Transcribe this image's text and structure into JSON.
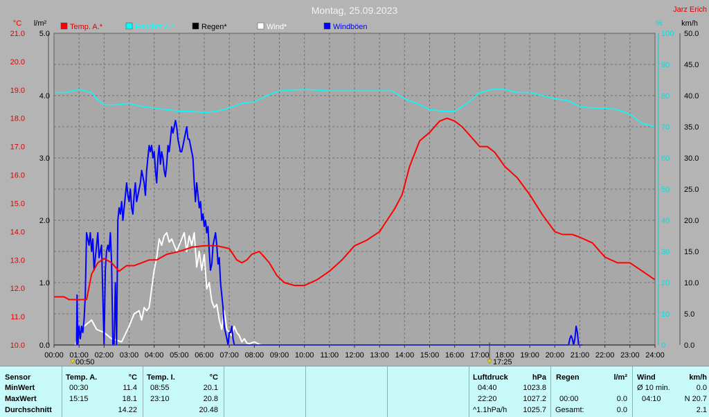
{
  "header": {
    "title": "Montag, 25.09.2023",
    "station": "Jarz Erich",
    "unit_c": "°C",
    "unit_lm2": "l/m²",
    "unit_pct": "%",
    "unit_kmh": "km/h"
  },
  "legend": [
    {
      "label": "Temp. A.*",
      "color": "#ff0000"
    },
    {
      "label": "Feuchte A.*",
      "color": "#00ffff"
    },
    {
      "label": "Regen*",
      "color": "#000000"
    },
    {
      "label": "Wind*",
      "color": "#ffffff"
    },
    {
      "label": "Windböen",
      "color": "#0000ff"
    }
  ],
  "markers": {
    "m1": "00:50",
    "m2": "17:25"
  },
  "chart_data": {
    "type": "line",
    "title": "Montag, 25.09.2023",
    "x_ticks": [
      "00:00",
      "01:00",
      "02:00",
      "03:00",
      "04:00",
      "05:00",
      "06:00",
      "07:00",
      "08:00",
      "09:00",
      "10:00",
      "11:00",
      "12:00",
      "13:00",
      "14:00",
      "15:00",
      "16:00",
      "17:00",
      "18:00",
      "19:00",
      "20:00",
      "21:00",
      "22:00",
      "23:00",
      "24:00"
    ],
    "y_temp": {
      "label": "°C",
      "range": [
        10,
        21
      ],
      "ticks": [
        "21.0",
        "20.0",
        "19.0",
        "18.0",
        "17.0",
        "16.0",
        "15.0",
        "14.0",
        "13.0",
        "12.0",
        "11.0",
        "10.0"
      ]
    },
    "y_rain": {
      "label": "l/m²",
      "range": [
        0,
        5
      ],
      "ticks": [
        "5.0",
        "4.0",
        "3.0",
        "2.0",
        "1.0",
        "0.0"
      ]
    },
    "y_hum": {
      "label": "%",
      "range": [
        0,
        100
      ],
      "ticks": [
        "100",
        "90",
        "80",
        "70",
        "60",
        "50",
        "40",
        "30",
        "20",
        "10",
        "0"
      ]
    },
    "y_wind": {
      "label": "km/h",
      "range": [
        0,
        50
      ],
      "ticks": [
        "50.0",
        "45.0",
        "40.0",
        "35.0",
        "30.0",
        "25.0",
        "20.0",
        "15.0",
        "10.0",
        "5.0",
        "0.0"
      ]
    },
    "grid": true,
    "series": [
      {
        "name": "Temp. A.*",
        "axis": "temp",
        "color": "#ff0000",
        "x": [
          0,
          0.4,
          0.6,
          0.83,
          1,
          1.3,
          1.5,
          1.75,
          2,
          2.3,
          2.6,
          2.9,
          3.2,
          3.5,
          3.8,
          4.1,
          4.5,
          5,
          5.5,
          6,
          6.5,
          7,
          7.3,
          7.5,
          7.7,
          7.9,
          8.2,
          8.6,
          8.9,
          9.2,
          9.6,
          10,
          10.5,
          11,
          11.5,
          12,
          12.5,
          13,
          13.3,
          13.6,
          13.9,
          14.2,
          14.6,
          15,
          15.4,
          15.7,
          16,
          16.3,
          16.6,
          17,
          17.3,
          17.6,
          18,
          18.5,
          19,
          19.5,
          20,
          20.3,
          20.7,
          21,
          21.5,
          22,
          22.5,
          23,
          23.5,
          24
        ],
        "y": [
          11.7,
          11.7,
          11.6,
          11.6,
          11.6,
          11.6,
          12.5,
          12.9,
          13.05,
          12.9,
          12.6,
          12.8,
          12.8,
          12.9,
          13.0,
          13.0,
          13.2,
          13.3,
          13.45,
          13.5,
          13.5,
          13.4,
          13.0,
          12.9,
          13.0,
          13.2,
          13.3,
          12.9,
          12.45,
          12.2,
          12.1,
          12.1,
          12.3,
          12.6,
          13.0,
          13.5,
          13.7,
          14.0,
          14.4,
          14.8,
          15.3,
          16.3,
          17.2,
          17.5,
          17.9,
          18.0,
          17.9,
          17.7,
          17.4,
          17.0,
          17.0,
          16.8,
          16.3,
          15.9,
          15.3,
          14.6,
          14.0,
          13.9,
          13.9,
          13.8,
          13.6,
          13.1,
          12.9,
          12.9,
          12.6,
          12.3
        ]
      },
      {
        "name": "Feuchte A.*",
        "axis": "hum",
        "color": "#00ffff",
        "x": [
          0,
          0.5,
          1,
          1.5,
          1.7,
          2,
          2.5,
          3,
          3.5,
          4,
          4.5,
          5,
          5.5,
          6,
          6.5,
          7,
          7.5,
          8,
          8.5,
          9,
          10,
          11,
          12,
          13,
          13.5,
          14,
          14.5,
          15,
          15.5,
          16,
          16.5,
          17,
          17.5,
          18,
          18.5,
          19,
          19.5,
          20,
          20.5,
          21,
          21.5,
          22,
          22.5,
          23,
          23.5,
          24
        ],
        "y": [
          81,
          81,
          82,
          81,
          79,
          77,
          77,
          77.5,
          76.5,
          76,
          75.5,
          75,
          75,
          74.5,
          75,
          76,
          77.5,
          78,
          80,
          81.5,
          82,
          81.5,
          81.5,
          81.5,
          81.5,
          79,
          77.5,
          75.5,
          75,
          75,
          77.5,
          81,
          82,
          82,
          81,
          81,
          80,
          79,
          78.5,
          76.5,
          76,
          76,
          75.5,
          74,
          71,
          70
        ]
      },
      {
        "name": "Regen*",
        "axis": "rain",
        "color": "#000000",
        "x": [
          0,
          24
        ],
        "y": [
          0,
          0
        ]
      },
      {
        "name": "Wind*",
        "axis": "wind",
        "color": "#ffffff",
        "x": [
          0.85,
          1,
          1.2,
          1.5,
          1.7,
          2,
          2.3,
          2.7,
          3,
          3.2,
          3.4,
          3.5,
          3.6,
          3.7,
          3.8,
          3.9,
          4,
          4.1,
          4.2,
          4.3,
          4.4,
          4.5,
          4.6,
          4.7,
          4.8,
          4.9,
          5,
          5.1,
          5.2,
          5.3,
          5.4,
          5.5,
          5.6,
          5.7,
          5.8,
          5.9,
          6,
          6.1,
          6.2,
          6.3,
          6.4,
          6.5,
          6.6,
          6.7,
          6.8,
          6.9,
          7,
          7.1,
          7.2,
          7.3,
          7.4,
          7.5,
          7.6,
          7.7,
          7.8,
          8,
          8.2,
          8.3
        ],
        "y": [
          0,
          2,
          3,
          4,
          2.5,
          2,
          1,
          0.5,
          3,
          5,
          5.5,
          4,
          6,
          5.5,
          6,
          9,
          12,
          14,
          17,
          16,
          17.5,
          18,
          16.5,
          17,
          16,
          15,
          16,
          17,
          18,
          15,
          17.5,
          16,
          18,
          12.5,
          15,
          12,
          14.5,
          9,
          10,
          7,
          6,
          6.5,
          4,
          2.5,
          5.5,
          2.5,
          2,
          1.5,
          3,
          2,
          1.5,
          0.5,
          1,
          0.3,
          0.2,
          0.5,
          0.1,
          0
        ]
      },
      {
        "name": "Windböen",
        "axis": "wind",
        "color": "#0000ff",
        "x": [
          0.9,
          0.92,
          0.95,
          1.0,
          1.05,
          1.1,
          1.15,
          1.2,
          1.25,
          1.3,
          1.35,
          1.4,
          1.45,
          1.5,
          1.55,
          1.6,
          1.65,
          1.7,
          1.75,
          1.8,
          1.85,
          1.9,
          1.95,
          2.0,
          2.05,
          2.1,
          2.15,
          2.2,
          2.25,
          2.3,
          2.35,
          2.4,
          2.45,
          2.5,
          2.55,
          2.6,
          2.65,
          2.7,
          2.75,
          2.8,
          2.85,
          2.9,
          2.95,
          3.0,
          3.05,
          3.1,
          3.15,
          3.2,
          3.25,
          3.3,
          3.35,
          3.4,
          3.45,
          3.5,
          3.55,
          3.6,
          3.65,
          3.7,
          3.75,
          3.8,
          3.85,
          3.9,
          3.95,
          4.0,
          4.05,
          4.1,
          4.15,
          4.2,
          4.25,
          4.3,
          4.35,
          4.4,
          4.45,
          4.5,
          4.55,
          4.6,
          4.65,
          4.7,
          4.75,
          4.8,
          4.85,
          4.9,
          4.95,
          5.0,
          5.05,
          5.1,
          5.15,
          5.2,
          5.25,
          5.3,
          5.35,
          5.4,
          5.45,
          5.5,
          5.55,
          5.6,
          5.65,
          5.7,
          5.75,
          5.8,
          5.85,
          5.9,
          5.95,
          6.0,
          6.05,
          6.1,
          6.15,
          6.2,
          6.25,
          6.3,
          6.35,
          6.4,
          6.45,
          6.5,
          6.55,
          6.6,
          6.65,
          6.7,
          6.75,
          6.8,
          6.85,
          6.9,
          6.95,
          7.0,
          7.05,
          7.1,
          7.15,
          7.2,
          7.25,
          7.3,
          7.35,
          7.4,
          7.45,
          7.5,
          7.55,
          7.6,
          7.65,
          7.7,
          7.75,
          7.8,
          7.85,
          7.9,
          7.95,
          8.0,
          20.5,
          20.55,
          20.6,
          20.65,
          20.7,
          20.75,
          20.8,
          20.85,
          20.9,
          20.95,
          21.0,
          21.05,
          21.1
        ],
        "y": [
          0,
          8,
          0,
          3,
          1,
          3,
          2,
          4,
          8,
          18,
          17,
          16,
          18,
          15,
          17,
          12,
          14,
          16,
          18,
          14,
          15,
          16,
          8,
          0,
          12,
          15,
          16,
          15,
          18,
          13,
          0,
          0,
          10,
          0,
          20,
          22,
          21,
          23,
          20,
          22,
          24,
          26,
          24,
          23,
          25,
          22,
          21,
          24,
          26,
          23,
          24,
          25,
          26,
          28,
          27,
          26,
          24,
          28,
          30,
          32,
          31,
          32,
          30,
          31,
          28,
          26,
          30,
          32,
          29,
          31,
          30,
          28,
          27,
          29,
          32,
          31,
          33,
          35,
          34,
          35,
          36,
          35,
          33,
          32,
          31,
          31,
          32,
          33,
          34,
          35,
          33,
          33,
          32,
          31,
          30,
          26,
          23,
          26,
          24,
          22,
          23,
          20,
          21,
          19,
          20,
          18,
          19,
          15,
          12,
          13,
          16,
          17,
          18,
          16,
          13,
          14,
          10,
          8,
          6,
          3,
          2,
          1,
          0,
          2,
          2,
          3,
          1,
          0,
          0,
          0,
          0,
          0,
          0,
          0,
          0,
          0,
          0,
          0,
          0,
          0,
          0,
          0,
          0,
          0,
          0,
          0,
          1,
          1.5,
          1,
          0,
          1,
          3,
          2,
          0,
          0,
          0,
          0
        ]
      }
    ]
  },
  "table": {
    "sensor": {
      "h": "Sensor",
      "r1": "MinWert",
      "r2": "MaxWert",
      "r3": "Durchschnitt"
    },
    "temp_a": {
      "h": "Temp. A.",
      "u": "°C",
      "t1": "00:30",
      "v1": "11.4",
      "t2": "15:15",
      "v2": "18.1",
      "v3": "14.22"
    },
    "temp_i": {
      "h": "Temp. I.",
      "u": "°C",
      "t1": "08:55",
      "v1": "20.1",
      "t2": "23:10",
      "v2": "20.8",
      "v3": "20.48"
    },
    "pressure": {
      "h": "Luftdruck",
      "u": "hPa",
      "t1": "04:40",
      "v1": "1023.8",
      "t2": "22:20",
      "v2": "1027.2",
      "t3": "^1.1hPa/h",
      "v3": "1025.7"
    },
    "rain": {
      "h": "Regen",
      "u": "l/m²",
      "t2": "00:00",
      "v2": "0.0",
      "t3": "Gesamt:",
      "v3": "0.0"
    },
    "wind": {
      "h": "Wind",
      "u": "km/h",
      "t1": "Ø 10 min.",
      "v1": "0.0",
      "t2": "04:10",
      "v2": "N 20.7",
      "v3": "2.1"
    }
  }
}
